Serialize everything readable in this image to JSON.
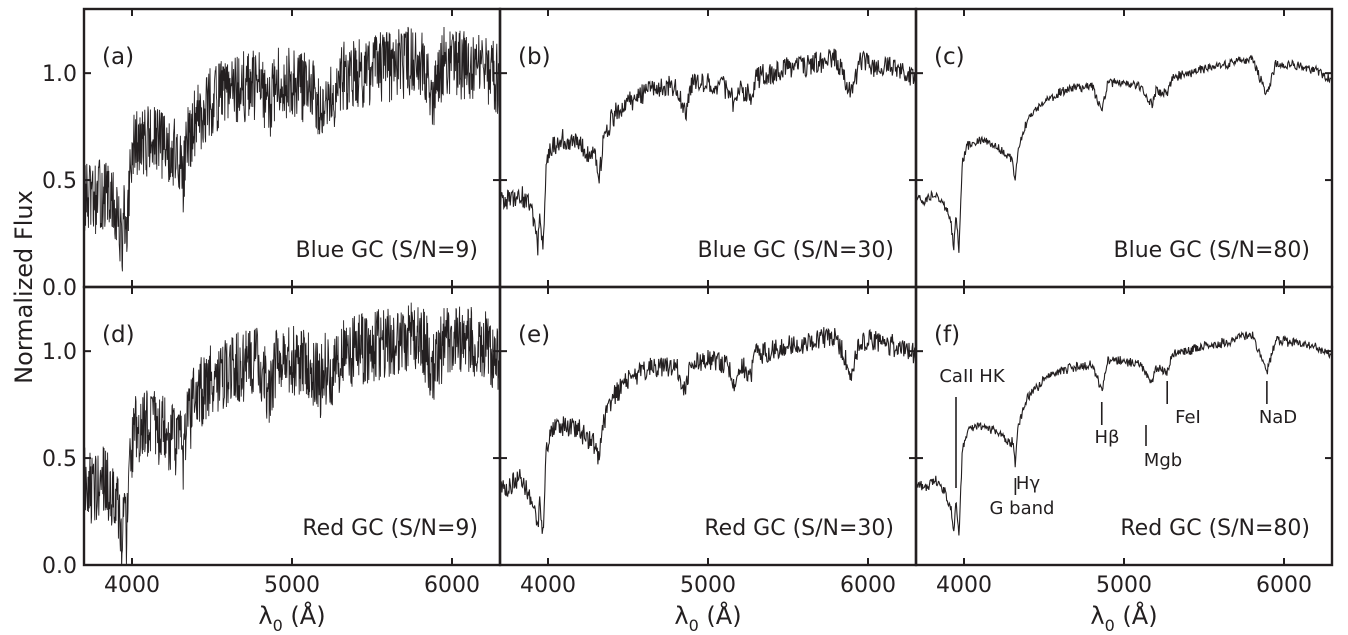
{
  "chart_data": {
    "type": "line",
    "ylabel": "Normalized Flux",
    "xlabel_main": "λ",
    "xlabel_sub": "0",
    "xlabel_unit": " (Å)",
    "xlim": [
      3700,
      6300
    ],
    "ylim": [
      0.0,
      1.3
    ],
    "xticks": [
      4000,
      5000,
      6000
    ],
    "yticks": [
      0.0,
      0.5,
      1.0
    ],
    "ytick_labels": [
      "0.0",
      "0.5",
      "1.0"
    ],
    "grid": false,
    "spectrum_template": {
      "x": [
        3700,
        3760,
        3820,
        3880,
        3920,
        3935,
        3950,
        3968,
        3990,
        4020,
        4100,
        4200,
        4300,
        4320,
        4340,
        4400,
        4500,
        4600,
        4700,
        4800,
        4861,
        4900,
        5000,
        5100,
        5175,
        5200,
        5270,
        5300,
        5400,
        5500,
        5600,
        5700,
        5800,
        5893,
        5950,
        6000,
        6100,
        6200,
        6300
      ],
      "y": [
        0.42,
        0.4,
        0.44,
        0.38,
        0.3,
        0.18,
        0.35,
        0.17,
        0.58,
        0.66,
        0.69,
        0.66,
        0.6,
        0.48,
        0.66,
        0.79,
        0.87,
        0.91,
        0.93,
        0.94,
        0.82,
        0.96,
        0.95,
        0.94,
        0.85,
        0.92,
        0.9,
        0.98,
        1.0,
        1.02,
        1.03,
        1.05,
        1.07,
        0.9,
        1.05,
        1.04,
        1.03,
        1.01,
        0.97
      ]
    },
    "panels": [
      {
        "tag": "(a)",
        "caption": "Blue GC (S/N=9)",
        "population": "Blue GC",
        "snr": 9
      },
      {
        "tag": "(b)",
        "caption": "Blue GC (S/N=30)",
        "population": "Blue GC",
        "snr": 30
      },
      {
        "tag": "(c)",
        "caption": "Blue GC (S/N=80)",
        "population": "Blue GC",
        "snr": 80
      },
      {
        "tag": "(d)",
        "caption": "Red GC (S/N=9)",
        "population": "Red GC",
        "snr": 9
      },
      {
        "tag": "(e)",
        "caption": "Red GC (S/N=30)",
        "population": "Red GC",
        "snr": 30
      },
      {
        "tag": "(f)",
        "caption": "Red GC (S/N=80)",
        "population": "Red GC",
        "snr": 80
      }
    ],
    "annotations": [
      {
        "label": "CaII HK",
        "x": 3950
      },
      {
        "label": "Hγ",
        "x": 4340
      },
      {
        "label": "G band",
        "x": 4305
      },
      {
        "label": "Hβ",
        "x": 4861
      },
      {
        "label": "Mgb",
        "x": 5175
      },
      {
        "label": "FeI",
        "x": 5270
      },
      {
        "label": "NaD",
        "x": 5893
      }
    ]
  }
}
